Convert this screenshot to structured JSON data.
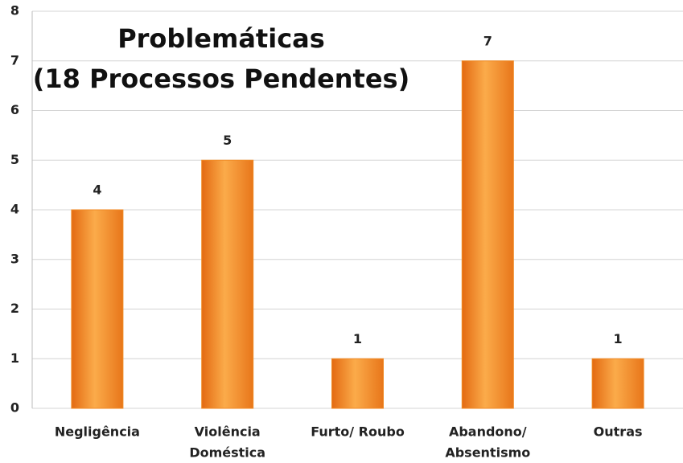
{
  "chart_data": {
    "type": "bar",
    "title": "Problemáticas",
    "subtitle": "(18 Processos Pendentes)",
    "categories": [
      [
        "Negligência"
      ],
      [
        "Violência",
        "Doméstica"
      ],
      [
        "Furto/ Roubo"
      ],
      [
        "Abandono/",
        "Absentismo"
      ],
      [
        "Outras"
      ]
    ],
    "values": [
      4,
      5,
      1,
      7,
      1
    ],
    "color": "#f08a24",
    "ylim": [
      0,
      8
    ],
    "yticks": [
      0,
      1,
      2,
      3,
      4,
      5,
      6,
      7,
      8
    ],
    "grid": true
  }
}
